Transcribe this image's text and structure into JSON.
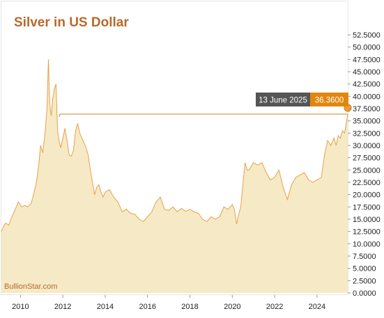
{
  "colors": {
    "title": "#b8692a",
    "area_fill": "#f5eac5",
    "line": "#e8a04a",
    "marker": "#f0a030",
    "hline": "#d4831c",
    "tooltip_date_bg": "#555555",
    "tooltip_value_bg": "#e0870e",
    "watermark": "#b8692a",
    "frame": "#e6e6e6"
  },
  "chart_data": {
    "type": "area",
    "title": "Silver in US Dollar",
    "watermark": "BullionStar.com",
    "xlabel": "",
    "ylabel": "",
    "xlim": [
      2009.1,
      2025.45
    ],
    "ylim": [
      0,
      52.5
    ],
    "y_ticks": [
      "52.5000",
      "50.0000",
      "47.5000",
      "45.0000",
      "42.5000",
      "40.0000",
      "37.5000",
      "35.0000",
      "32.5000",
      "30.0000",
      "27.5000",
      "25.0000",
      "22.5000",
      "20.0000",
      "17.5000",
      "15.0000",
      "12.5000",
      "10.0000",
      "7.5000",
      "5.0000",
      "2.5000",
      "0.0000"
    ],
    "x_ticks": [
      "2010",
      "2012",
      "2014",
      "2016",
      "2018",
      "2020",
      "2022",
      "2024"
    ],
    "grid": false,
    "legend": "none",
    "tooltip": {
      "date": "13 June 2025",
      "value": "36.3600"
    },
    "reference_line": 36.36,
    "series": [
      {
        "x": [
          2009.1,
          2009.2,
          2009.3,
          2009.45,
          2009.6,
          2009.75,
          2009.9,
          2010.05,
          2010.2,
          2010.35,
          2010.5,
          2010.65,
          2010.75,
          2010.85,
          2010.95,
          2011.05,
          2011.15,
          2011.25,
          2011.32,
          2011.38,
          2011.45,
          2011.52,
          2011.6,
          2011.68,
          2011.75,
          2011.82,
          2011.9,
          2012.0,
          2012.1,
          2012.2,
          2012.3,
          2012.4,
          2012.5,
          2012.6,
          2012.7,
          2012.8,
          2012.9,
          2013.0,
          2013.1,
          2013.2,
          2013.3,
          2013.4,
          2013.5,
          2013.6,
          2013.7,
          2013.8,
          2013.9,
          2014.0,
          2014.2,
          2014.4,
          2014.6,
          2014.8,
          2015.0,
          2015.2,
          2015.4,
          2015.6,
          2015.8,
          2016.0,
          2016.2,
          2016.4,
          2016.6,
          2016.8,
          2017.0,
          2017.2,
          2017.4,
          2017.6,
          2017.8,
          2018.0,
          2018.2,
          2018.4,
          2018.6,
          2018.8,
          2019.0,
          2019.2,
          2019.4,
          2019.6,
          2019.8,
          2020.0,
          2020.1,
          2020.2,
          2020.3,
          2020.4,
          2020.5,
          2020.6,
          2020.7,
          2020.8,
          2021.0,
          2021.2,
          2021.4,
          2021.6,
          2021.8,
          2022.0,
          2022.2,
          2022.4,
          2022.6,
          2022.8,
          2023.0,
          2023.2,
          2023.4,
          2023.6,
          2023.8,
          2024.0,
          2024.2,
          2024.35,
          2024.5,
          2024.65,
          2024.8,
          2024.9,
          2025.0,
          2025.1,
          2025.2,
          2025.3,
          2025.45
        ],
        "values": [
          12.5,
          13.5,
          14.2,
          13.8,
          15.5,
          17.0,
          18.5,
          17.5,
          17.8,
          17.5,
          18.2,
          20.5,
          22.5,
          25.5,
          30.0,
          28.5,
          32.0,
          37.5,
          47.5,
          38.5,
          36.0,
          39.5,
          41.5,
          42.5,
          33.0,
          31.0,
          29.5,
          31.5,
          33.5,
          31.0,
          28.0,
          27.8,
          29.0,
          33.0,
          34.5,
          32.5,
          31.5,
          30.5,
          29.5,
          28.0,
          25.0,
          22.5,
          20.0,
          21.5,
          22.0,
          20.5,
          19.5,
          20.5,
          21.0,
          19.5,
          18.5,
          16.5,
          17.0,
          16.2,
          16.0,
          15.0,
          14.5,
          15.5,
          16.5,
          18.5,
          19.5,
          17.0,
          16.8,
          17.5,
          16.5,
          17.2,
          16.6,
          17.0,
          16.5,
          16.2,
          15.0,
          14.5,
          15.5,
          15.0,
          15.5,
          17.5,
          17.0,
          18.0,
          17.0,
          14.0,
          16.0,
          17.5,
          22.0,
          26.5,
          25.0,
          25.0,
          26.5,
          26.0,
          26.5,
          24.5,
          23.0,
          23.5,
          25.0,
          21.5,
          19.0,
          22.0,
          23.5,
          24.0,
          24.5,
          23.0,
          22.5,
          23.0,
          23.5,
          28.0,
          31.0,
          30.0,
          31.5,
          30.0,
          32.0,
          31.5,
          33.0,
          32.5,
          36.36
        ]
      }
    ]
  }
}
